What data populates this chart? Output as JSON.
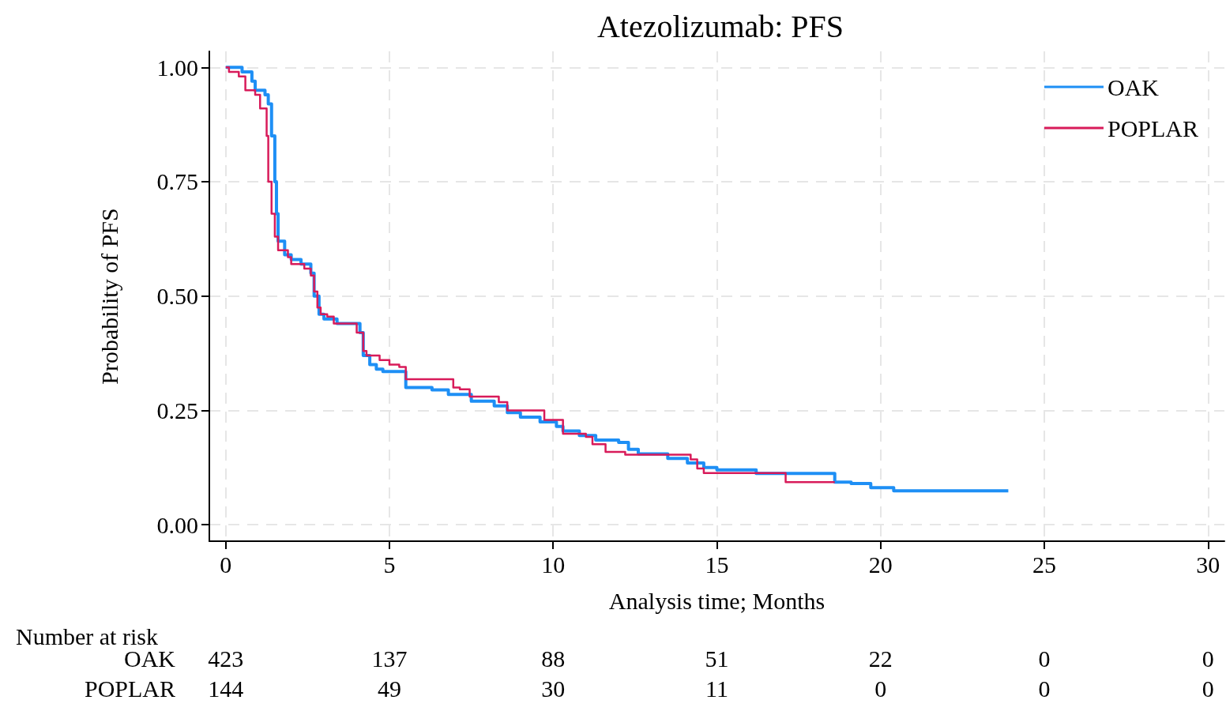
{
  "chart_data": {
    "type": "step",
    "title": "Atezolizumab: PFS",
    "xlabel": "Analysis time; Months",
    "ylabel": "Probability of PFS",
    "xlim": [
      -0.5,
      30.5
    ],
    "xticks": [
      0,
      5,
      10,
      15,
      20,
      25,
      30
    ],
    "ylim": [
      -0.036,
      1.035
    ],
    "yticks": [
      {
        "value": 0,
        "label": "0.00"
      },
      {
        "value": 0.25,
        "label": "0.25"
      },
      {
        "value": 0.5,
        "label": "0.50"
      },
      {
        "value": 0.75,
        "label": "0.75"
      },
      {
        "value": 1,
        "label": "1.00"
      }
    ],
    "grid": true,
    "legend": "top right",
    "line_style": "solid",
    "marker": "none",
    "series": [
      {
        "name": "OAK",
        "color": "#1e8ff5",
        "x": [
          0,
          0.5,
          0.8,
          0.9,
          1.2,
          1.3,
          1.4,
          1.5,
          1.55,
          1.6,
          1.8,
          2.0,
          2.3,
          2.6,
          2.7,
          2.85,
          3.0,
          3.4,
          4.1,
          4.2,
          4.4,
          4.6,
          4.8,
          5.5,
          6.3,
          6.8,
          7.5,
          8.2,
          8.6,
          9.0,
          9.6,
          10.1,
          10.3,
          10.8,
          11.3,
          12.0,
          12.3,
          12.6,
          13.5,
          14.1,
          14.6,
          15.0,
          16.2,
          18.6,
          19.1,
          19.7,
          20.4,
          23.9
        ],
        "values": [
          1.0,
          0.99,
          0.97,
          0.95,
          0.94,
          0.92,
          0.85,
          0.75,
          0.68,
          0.62,
          0.59,
          0.58,
          0.57,
          0.55,
          0.5,
          0.46,
          0.45,
          0.44,
          0.42,
          0.37,
          0.35,
          0.34,
          0.335,
          0.3,
          0.295,
          0.285,
          0.27,
          0.26,
          0.245,
          0.235,
          0.225,
          0.215,
          0.205,
          0.195,
          0.185,
          0.18,
          0.165,
          0.155,
          0.145,
          0.135,
          0.125,
          0.12,
          0.112,
          0.093,
          0.09,
          0.081,
          0.074,
          0.074
        ]
      },
      {
        "name": "POPLAR",
        "color": "#d81b5a",
        "x": [
          0,
          0.1,
          0.4,
          0.6,
          0.9,
          1.05,
          1.25,
          1.3,
          1.4,
          1.5,
          1.6,
          1.9,
          2.0,
          2.4,
          2.6,
          2.7,
          2.8,
          2.9,
          3.1,
          3.3,
          4.0,
          4.2,
          4.3,
          4.7,
          5.0,
          5.3,
          5.5,
          6.95,
          7.15,
          7.45,
          8.34,
          8.6,
          9.73,
          10.3,
          11.0,
          11.2,
          11.6,
          12.2,
          14.2,
          14.4,
          14.6,
          17.1,
          18.6
        ],
        "values": [
          1.0,
          0.99,
          0.98,
          0.95,
          0.94,
          0.91,
          0.85,
          0.75,
          0.68,
          0.63,
          0.6,
          0.585,
          0.57,
          0.56,
          0.545,
          0.51,
          0.475,
          0.46,
          0.455,
          0.44,
          0.42,
          0.38,
          0.37,
          0.36,
          0.35,
          0.345,
          0.318,
          0.3,
          0.296,
          0.28,
          0.268,
          0.25,
          0.229,
          0.199,
          0.192,
          0.176,
          0.159,
          0.153,
          0.143,
          0.123,
          0.113,
          0.093,
          0.093
        ]
      }
    ],
    "annotations": [
      "Number at risk",
      "423",
      "137",
      "88",
      "51",
      "22",
      "0",
      "0",
      "144",
      "49",
      "30",
      "11",
      "0",
      "0",
      "0"
    ]
  }
}
